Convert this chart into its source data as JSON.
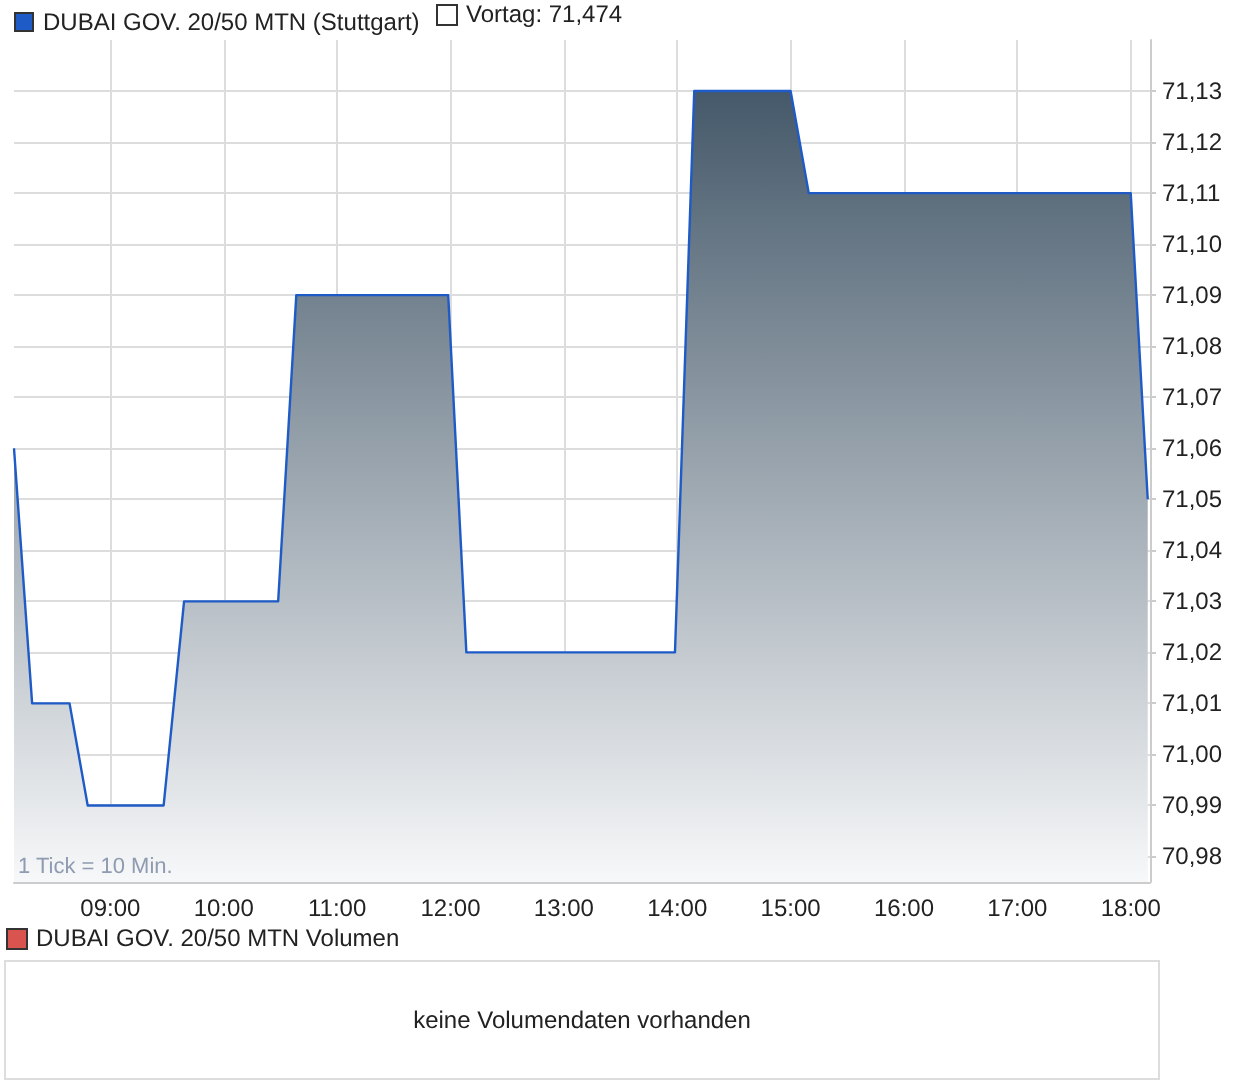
{
  "chart_data": [
    {
      "type": "area",
      "series": [
        {
          "name": "DUBAI GOV. 20/50 MTN (Stuttgart)",
          "color": "#1f5bc6",
          "x": [
            8.15,
            8.31,
            8.64,
            8.8,
            9.47,
            9.65,
            10.48,
            10.64,
            11.98,
            12.14,
            13.98,
            14.15,
            15.0,
            15.16,
            18.0,
            18.15
          ],
          "values": [
            71.06,
            71.01,
            71.01,
            70.99,
            70.99,
            71.03,
            71.03,
            71.09,
            71.09,
            71.02,
            71.02,
            71.13,
            71.13,
            71.11,
            71.11,
            71.05
          ]
        }
      ],
      "xlim": [
        8.15,
        18.17
      ],
      "xticks": [
        {
          "value": 9,
          "label": "09:00"
        },
        {
          "value": 10,
          "label": "10:00"
        },
        {
          "value": 11,
          "label": "11:00"
        },
        {
          "value": 12,
          "label": "12:00"
        },
        {
          "value": 13,
          "label": "13:00"
        },
        {
          "value": 14,
          "label": "14:00"
        },
        {
          "value": 15,
          "label": "15:00"
        },
        {
          "value": 16,
          "label": "16:00"
        },
        {
          "value": 17,
          "label": "17:00"
        },
        {
          "value": 18,
          "label": "18:00"
        }
      ],
      "ylim": [
        70.975,
        71.14
      ],
      "yticks": [
        {
          "value": 70.98,
          "label": "70,98"
        },
        {
          "value": 70.99,
          "label": "70,99"
        },
        {
          "value": 71.0,
          "label": "71,00"
        },
        {
          "value": 71.01,
          "label": "71,01"
        },
        {
          "value": 71.02,
          "label": "71,02"
        },
        {
          "value": 71.03,
          "label": "71,03"
        },
        {
          "value": 71.04,
          "label": "71,04"
        },
        {
          "value": 71.05,
          "label": "71,05"
        },
        {
          "value": 71.06,
          "label": "71,06"
        },
        {
          "value": 71.07,
          "label": "71,07"
        },
        {
          "value": 71.08,
          "label": "71,08"
        },
        {
          "value": 71.09,
          "label": "71,09"
        },
        {
          "value": 71.1,
          "label": "71,10"
        },
        {
          "value": 71.11,
          "label": "71,11"
        },
        {
          "value": 71.12,
          "label": "71,12"
        },
        {
          "value": 71.13,
          "label": "71,13"
        }
      ],
      "grid": true,
      "legend": "top left",
      "marker": "none",
      "annotations": [
        "Vortag: 71,474",
        "1 Tick = 10 Min."
      ]
    },
    {
      "type": "other",
      "title": "DUBAI GOV. 20/50 MTN Volumen",
      "annotations": [
        "keine Volumendaten vorhanden"
      ]
    }
  ]
}
